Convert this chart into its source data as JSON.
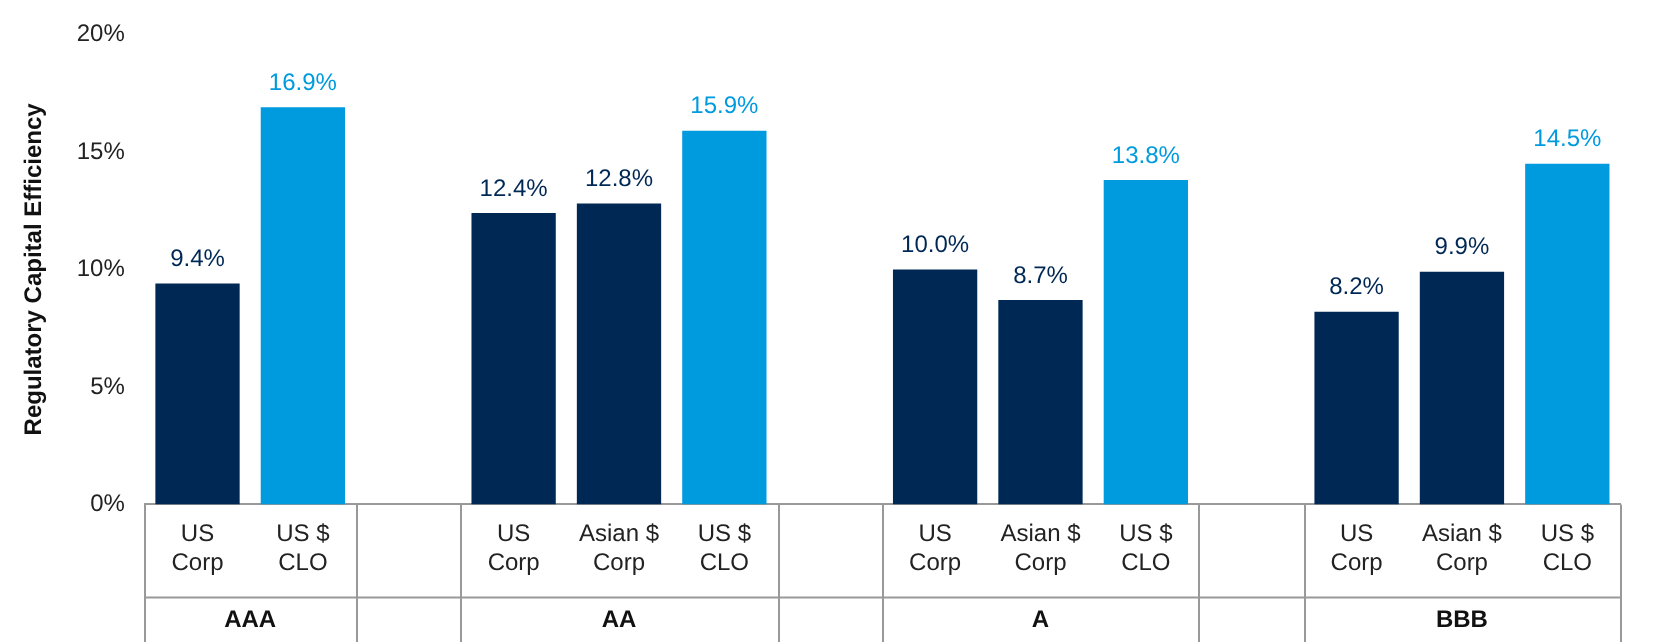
{
  "chart_data": {
    "type": "bar",
    "ylabel": "Regulatory Capital Efficiency",
    "categories": [
      "US\nCorp",
      "US $\nCLO",
      null,
      "US\nCorp",
      "Asian $\nCorp",
      "US $\nCLO",
      null,
      "US\nCorp",
      "Asian $\nCorp",
      "US $\nCLO",
      null,
      "US\nCorp",
      "Asian $\nCorp",
      "US $\nCLO"
    ],
    "values": [
      9.4,
      16.9,
      null,
      12.4,
      12.8,
      15.9,
      null,
      10.0,
      8.7,
      13.8,
      null,
      8.2,
      9.9,
      14.5
    ],
    "colors": [
      "#002855",
      "#009ade",
      null,
      "#002855",
      "#002855",
      "#009ade",
      null,
      "#002855",
      "#002855",
      "#009ade",
      null,
      "#002855",
      "#002855",
      "#009ade"
    ],
    "value_labels": [
      "9.4%",
      "16.9%",
      null,
      "12.4%",
      "12.8%",
      "15.9%",
      null,
      "10.0%",
      "8.7%",
      "13.8%",
      null,
      "8.2%",
      "9.9%",
      "14.5%"
    ],
    "annotations": [
      "AAA",
      "AA",
      "A",
      "BBB"
    ],
    "ylim": [
      0,
      20
    ],
    "yticks": [
      {
        "value": 0,
        "label": "0%"
      },
      {
        "value": 5,
        "label": "5%"
      },
      {
        "value": 10,
        "label": "10%"
      },
      {
        "value": 15,
        "label": "15%"
      },
      {
        "value": 20,
        "label": "20%"
      }
    ],
    "grid": false,
    "legend": false
  }
}
